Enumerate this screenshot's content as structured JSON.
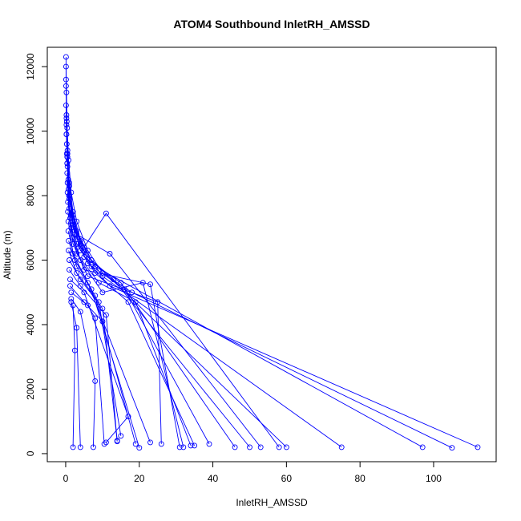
{
  "chart_data": {
    "type": "line",
    "title": "ATOM4 Southbound InletRH_AMSSD",
    "xlabel": "InletRH_AMSSD",
    "ylabel": "Altitude (m)",
    "xlim": [
      -5,
      117
    ],
    "ylim": [
      -250,
      12600
    ],
    "xticks": [
      "0",
      "20",
      "40",
      "60",
      "80",
      "100"
    ],
    "yticks": [
      "0",
      "2000",
      "4000",
      "6000",
      "8000",
      "10000",
      "12000"
    ],
    "grid": false,
    "legend": "none",
    "series_color": "#0000ff",
    "marker": "open-circle",
    "series": [
      {
        "x": [
          0.1,
          0.1,
          0.2,
          0.5,
          1,
          2,
          4,
          7,
          12,
          112
        ],
        "y": [
          12300,
          11600,
          10400,
          9300,
          8300,
          7400,
          6500,
          5800,
          5200,
          200
        ]
      },
      {
        "x": [
          0.1,
          0.2,
          0.4,
          0.8,
          1.5,
          3,
          6,
          10,
          18,
          105
        ],
        "y": [
          12000,
          11200,
          10100,
          9100,
          8100,
          7200,
          6300,
          5600,
          5000,
          180
        ]
      },
      {
        "x": [
          0.1,
          0.3,
          0.5,
          1,
          2,
          4,
          8,
          97
        ],
        "y": [
          11400,
          10300,
          9400,
          8400,
          7500,
          6600,
          5800,
          200
        ]
      },
      {
        "x": [
          0.1,
          0.2,
          0.4,
          0.9,
          2,
          5,
          10,
          75
        ],
        "y": [
          10800,
          9900,
          9000,
          8000,
          7100,
          6300,
          5500,
          200
        ]
      },
      {
        "x": [
          0.2,
          0.5,
          1,
          3,
          7,
          60
        ],
        "y": [
          10500,
          9200,
          8000,
          6900,
          6000,
          200
        ]
      },
      {
        "x": [
          0.2,
          0.4,
          0.8,
          2,
          5,
          11,
          58
        ],
        "y": [
          10200,
          9200,
          8200,
          7200,
          6400,
          7450,
          200
        ]
      },
      {
        "x": [
          0.2,
          0.5,
          1,
          3,
          12,
          53
        ],
        "y": [
          9900,
          8900,
          7900,
          6800,
          6200,
          200
        ]
      },
      {
        "x": [
          0.3,
          0.7,
          1.5,
          4,
          13,
          50
        ],
        "y": [
          9600,
          8500,
          7400,
          6300,
          5400,
          200
        ]
      },
      {
        "x": [
          0.3,
          0.8,
          2,
          5,
          15,
          46
        ],
        "y": [
          9300,
          8200,
          7100,
          6100,
          5300,
          200
        ]
      },
      {
        "x": [
          0.4,
          1,
          2.5,
          6,
          16,
          39
        ],
        "y": [
          9000,
          7900,
          6800,
          5900,
          5100,
          300
        ]
      },
      {
        "x": [
          0.4,
          1,
          3,
          8,
          17,
          35
        ],
        "y": [
          8700,
          7600,
          6500,
          5600,
          4700,
          250
        ]
      },
      {
        "x": [
          0.5,
          1.2,
          3,
          9,
          19,
          34
        ],
        "y": [
          8400,
          7300,
          6200,
          5300,
          4700,
          250
        ]
      },
      {
        "x": [
          0.5,
          1.5,
          4,
          10,
          21,
          32
        ],
        "y": [
          8100,
          7000,
          6000,
          5000,
          5300,
          200
        ]
      },
      {
        "x": [
          0.6,
          1.8,
          5,
          23,
          31
        ],
        "y": [
          7800,
          6700,
          5700,
          5250,
          200
        ]
      },
      {
        "x": [
          0.6,
          2,
          6,
          25,
          26
        ],
        "y": [
          7500,
          6500,
          5500,
          4700,
          300
        ]
      },
      {
        "x": [
          0.7,
          2,
          6,
          23
        ],
        "y": [
          7200,
          6200,
          5300,
          350
        ]
      },
      {
        "x": [
          0.7,
          2.5,
          7,
          20
        ],
        "y": [
          6900,
          6000,
          5100,
          180
        ]
      },
      {
        "x": [
          0.8,
          3,
          8,
          19
        ],
        "y": [
          6600,
          5800,
          4900,
          300
        ]
      },
      {
        "x": [
          0.8,
          3,
          9,
          15
        ],
        "y": [
          6300,
          5600,
          4700,
          550
        ]
      },
      {
        "x": [
          1,
          4,
          10,
          14
        ],
        "y": [
          6000,
          5400,
          4500,
          400
        ]
      },
      {
        "x": [
          1,
          4,
          11,
          14
        ],
        "y": [
          5700,
          5200,
          4300,
          380
        ]
      },
      {
        "x": [
          1.2,
          5,
          17,
          11
        ],
        "y": [
          5400,
          5000,
          1150,
          350
        ]
      },
      {
        "x": [
          1.2,
          5,
          10
        ],
        "y": [
          5200,
          4700,
          4100
        ]
      },
      {
        "x": [
          1.5,
          6,
          8,
          10.5
        ],
        "y": [
          5000,
          4600,
          4200,
          300
        ]
      },
      {
        "x": [
          1.5,
          4,
          8,
          7.5
        ],
        "y": [
          4800,
          4400,
          2250,
          200
        ]
      },
      {
        "x": [
          1.5,
          3,
          4
        ],
        "y": [
          4700,
          3900,
          200
        ]
      },
      {
        "x": [
          2,
          2.5,
          2
        ],
        "y": [
          4600,
          3200,
          200
        ]
      }
    ]
  }
}
